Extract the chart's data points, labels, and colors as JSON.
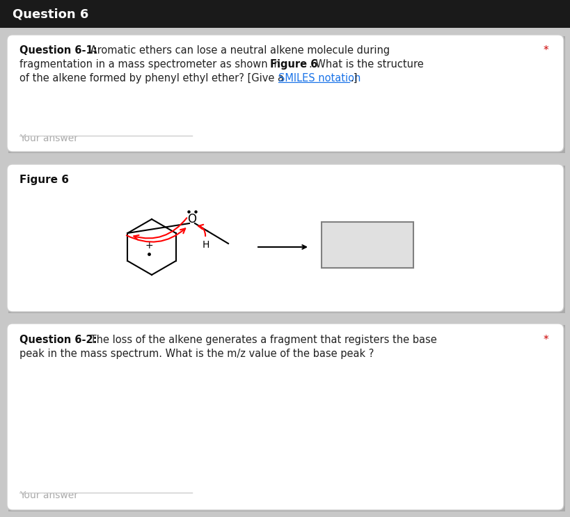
{
  "title": "Question 6",
  "title_bg": "#1a1a1a",
  "title_color": "#ffffff",
  "bg_color": "#c8c8c8",
  "card_bg": "#ffffff",
  "q1_label": "Question 6-1:",
  "q1_text1": " Aromatic ethers can lose a neutral alkene molecule during",
  "q1_text2": "fragmentation in a mass spectrometer as shown in ",
  "q1_bold": "Figure 6",
  "q1_text3": ". What is the structure",
  "q1_text4": "of the alkene formed by phenyl ethyl ether? [Give a ",
  "q1_link": "SMILES notation",
  "q1_text5": ".]",
  "q1_star": "*",
  "your_answer": "Your answer",
  "figure_label": "Figure 6",
  "q2_label": "Question 6-2:",
  "q2_text1": " The loss of the alkene generates a fragment that registers the base",
  "q2_star": "*",
  "q2_text2": "peak in the mass spectrum. What is the m/z value of the base peak ?",
  "answer_line_color": "#cccccc",
  "answer_text_color": "#aaaaaa",
  "star_color": "#cc0000",
  "link_color": "#1a73e8",
  "body_color": "#222222",
  "bold_color": "#111111",
  "card_border": "#cccccc",
  "shadow_color": "#aaaaaa"
}
